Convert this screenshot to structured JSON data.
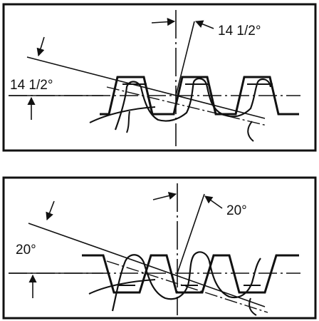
{
  "figure": {
    "panels": [
      {
        "id": "top",
        "pressure_angle_label_upper": "14 1/2°",
        "pressure_angle_label_left": "14 1/2°"
      },
      {
        "id": "bottom",
        "pressure_angle_label_upper": "20°",
        "pressure_angle_label_left": "20°"
      }
    ],
    "colors": {
      "ink": "#111111",
      "background": "#ffffff"
    }
  }
}
